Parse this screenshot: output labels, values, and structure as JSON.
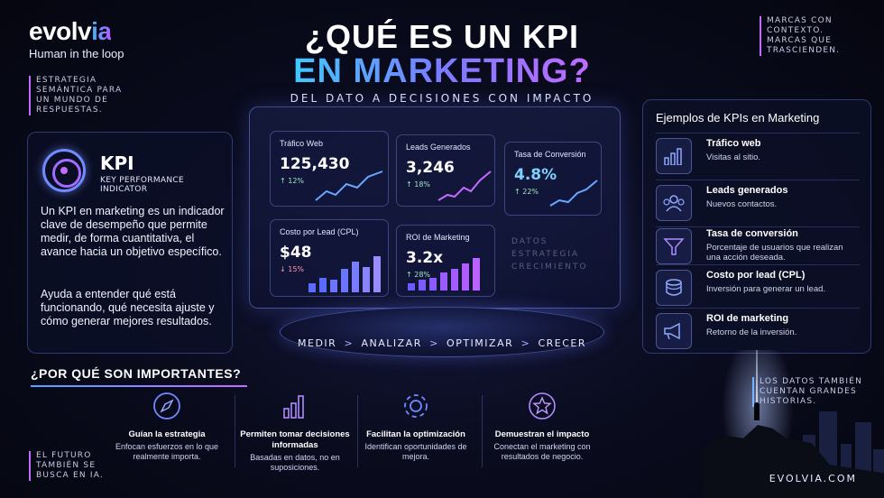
{
  "brand": {
    "logo_a": "evolv",
    "logo_b": "ia",
    "tagline": "Human in the loop"
  },
  "notes": {
    "top_left": "ESTRATEGIA SEMÁNTICA PARA UN MUNDO DE RESPUESTAS.",
    "top_right": "MARCAS CON CONTEXTO. MARCAS QUE TRASCIENDEN.",
    "bottom_left": "EL FUTURO TAMBIÉN SE BUSCA EN IA.",
    "bottom_right": "LOS DATOS TAMBIÉN CUENTAN GRANDES HISTORIAS."
  },
  "title": {
    "line1": "¿QUÉ ES UN KPI",
    "line2": "EN MARKETING?",
    "subtitle": "DEL DATO A DECISIONES CON IMPACTO"
  },
  "kpi_card": {
    "name": "KPI",
    "full": "KEY PERFORMANCE INDICATOR",
    "p1": "Un KPI en marketing es un indicador clave de desempeño que permite medir, de forma cuantitativa, el avance hacia un objetivo específico.",
    "p2": "Ayuda a entender qué está funcionando, qué necesita ajuste y cómo generar mejores resultados."
  },
  "dashboard": {
    "tiles": [
      {
        "label": "Tráfico Web",
        "value": "125,430",
        "delta": "↑ 12%"
      },
      {
        "label": "Leads Generados",
        "value": "3,246",
        "delta": "↑ 18%"
      },
      {
        "label": "Tasa de Conversión",
        "value": "4.8%",
        "delta": "↑ 22%"
      },
      {
        "label": "Costo por Lead (CPL)",
        "value": "$48",
        "delta": "↓ 15%"
      },
      {
        "label": "ROI de Marketing",
        "value": "3.2x",
        "delta": "↑ 28%"
      }
    ],
    "watermark": [
      "DATOS",
      "ESTRATEGIA",
      "CRECIMIENTO"
    ]
  },
  "steps": [
    "MEDIR",
    ">",
    "ANALIZAR",
    ">",
    "OPTIMIZAR",
    ">",
    "CRECER"
  ],
  "examples": {
    "title": "Ejemplos de KPIs en Marketing",
    "items": [
      {
        "name": "Tráfico web",
        "desc": "Visitas al sitio.",
        "icon": "bar-chart-icon"
      },
      {
        "name": "Leads generados",
        "desc": "Nuevos contactos.",
        "icon": "users-icon"
      },
      {
        "name": "Tasa de conversión",
        "desc": "Porcentaje de usuarios que realizan una acción deseada.",
        "icon": "funnel-icon"
      },
      {
        "name": "Costo por lead (CPL)",
        "desc": "Inversión para generar un lead.",
        "icon": "coins-icon"
      },
      {
        "name": "ROI de marketing",
        "desc": "Retorno de la inversión.",
        "icon": "megaphone-icon"
      }
    ]
  },
  "why": {
    "title": "¿POR QUÉ SON IMPORTANTES?",
    "items": [
      {
        "name": "Guían la estrategia",
        "desc": "Enfocan esfuerzos en lo que realmente importa.",
        "icon": "compass-icon"
      },
      {
        "name": "Permiten tomar decisiones informadas",
        "desc": "Basadas en datos, no en suposiciones.",
        "icon": "bar-chart-icon"
      },
      {
        "name": "Facilitan la optimización",
        "desc": "Identifican oportunidades de mejora.",
        "icon": "gear-icon"
      },
      {
        "name": "Demuestran el impacto",
        "desc": "Conectan el marketing con resultados de negocio.",
        "icon": "star-icon"
      }
    ]
  },
  "site": "EVOLVIA.COM"
}
